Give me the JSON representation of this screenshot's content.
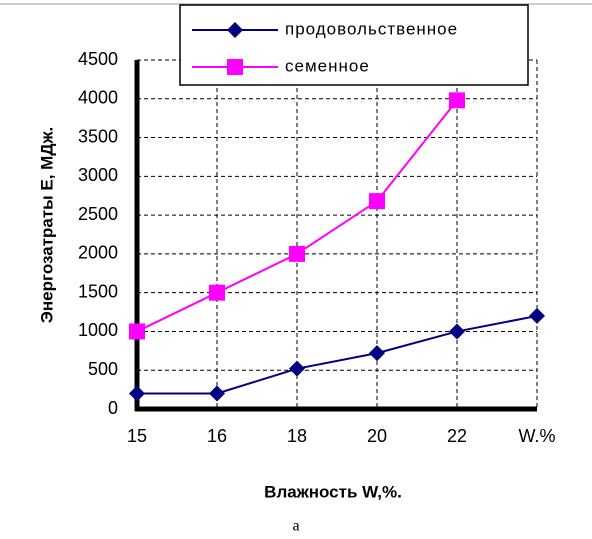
{
  "chart_data": {
    "type": "line",
    "categories": [
      "15",
      "16",
      "18",
      "20",
      "22",
      "W.%"
    ],
    "series": [
      {
        "name": "продовольственное",
        "color": "#000080",
        "marker": "diamond",
        "values": [
          200,
          200,
          520,
          720,
          1000,
          1200
        ]
      },
      {
        "name": "семенное",
        "color": "#ff00ff",
        "marker": "square",
        "values": [
          1000,
          1500,
          2000,
          2680,
          3980,
          null
        ]
      }
    ],
    "ylim": [
      0,
      4500
    ],
    "yticks": [
      0,
      500,
      1000,
      1500,
      2000,
      2500,
      3000,
      3500,
      4000,
      4500
    ],
    "y_label": "Энергозатраты    Е,   МДж.",
    "x_label": "Влажность  W,%.",
    "caption": "а",
    "grid": true
  }
}
